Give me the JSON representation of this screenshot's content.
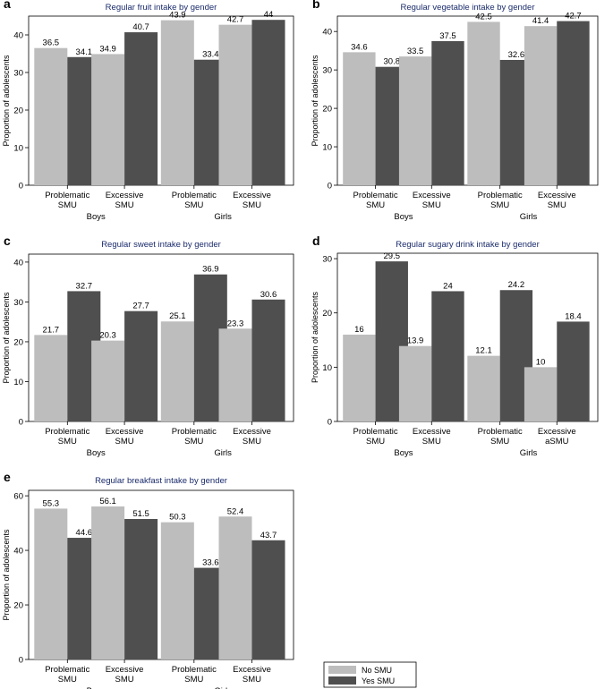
{
  "legend": {
    "items": [
      {
        "label": "No SMU",
        "color": "#bdbdbd"
      },
      {
        "label": "Yes SMU",
        "color": "#4f4f4f"
      }
    ]
  },
  "colors": {
    "no_smu": "#bdbdbd",
    "yes_smu": "#4f4f4f",
    "title": "#1a2b6b",
    "axis": "#000000"
  },
  "chart_data": [
    {
      "panel_letter": "a",
      "type": "bar",
      "title": "Regular fruit intake by gender",
      "ylabel": "Proportion of adolescents",
      "ylim": [
        0,
        45
      ],
      "yticks": [
        0,
        10,
        20,
        30,
        40
      ],
      "groups": [
        "Boys",
        "Girls"
      ],
      "categories": [
        [
          "Problematic",
          "SMU"
        ],
        [
          "Excessive",
          "SMU"
        ],
        [
          "Problematic",
          "SMU"
        ],
        [
          "Excessive",
          "SMU"
        ]
      ],
      "category_group": [
        0,
        0,
        1,
        1
      ],
      "series": [
        {
          "name": "No SMU",
          "values": [
            36.5,
            34.9,
            43.9,
            42.7
          ],
          "labels": [
            "36.5",
            "34.9",
            "43.9",
            "42.7"
          ]
        },
        {
          "name": "Yes SMU",
          "values": [
            34.1,
            40.7,
            33.4,
            44
          ],
          "labels": [
            "34.1",
            "40.7",
            "33.4",
            "44"
          ]
        }
      ]
    },
    {
      "panel_letter": "b",
      "type": "bar",
      "title": "Regular vegetable intake by gender",
      "ylabel": "Proportion of adolescents",
      "ylim": [
        0,
        44
      ],
      "yticks": [
        0,
        10,
        20,
        30,
        40
      ],
      "groups": [
        "Boys",
        "Girls"
      ],
      "categories": [
        [
          "Problematic",
          "SMU"
        ],
        [
          "Excessive",
          "SMU"
        ],
        [
          "Problematic",
          "SMU"
        ],
        [
          "Excessive",
          "SMU"
        ]
      ],
      "category_group": [
        0,
        0,
        1,
        1
      ],
      "series": [
        {
          "name": "No SMU",
          "values": [
            34.6,
            33.5,
            42.5,
            41.4
          ],
          "labels": [
            "34.6",
            "33.5",
            "42.5",
            "41.4"
          ]
        },
        {
          "name": "Yes SMU",
          "values": [
            30.8,
            37.5,
            32.6,
            42.7
          ],
          "labels": [
            "30.8",
            "37.5",
            "32.6",
            "42.7"
          ]
        }
      ]
    },
    {
      "panel_letter": "c",
      "type": "bar",
      "title": "Regular sweet intake by gender",
      "ylabel": "Proportion of adolescents",
      "ylim": [
        0,
        42
      ],
      "yticks": [
        0,
        10,
        20,
        30,
        40
      ],
      "groups": [
        "Boys",
        "Girls"
      ],
      "categories": [
        [
          "Problematic",
          "SMU"
        ],
        [
          "Excessive",
          "SMU"
        ],
        [
          "Problematic",
          "SMU"
        ],
        [
          "Excessive",
          "SMU"
        ]
      ],
      "category_group": [
        0,
        0,
        1,
        1
      ],
      "series": [
        {
          "name": "No SMU",
          "values": [
            21.7,
            20.3,
            25.1,
            23.3
          ],
          "labels": [
            "21.7",
            "20.3",
            "25.1",
            "23.3"
          ]
        },
        {
          "name": "Yes SMU",
          "values": [
            32.7,
            27.7,
            36.9,
            30.6
          ],
          "labels": [
            "32.7",
            "27.7",
            "36.9",
            "30.6"
          ]
        }
      ]
    },
    {
      "panel_letter": "d",
      "type": "bar",
      "title": "Regular sugary drink intake by gender",
      "ylabel": "Proportion of adolescents",
      "ylim": [
        0,
        31
      ],
      "yticks": [
        0,
        10,
        20,
        30
      ],
      "groups": [
        "Boys",
        "Girls"
      ],
      "categories": [
        [
          "Problematic",
          "SMU"
        ],
        [
          "Excessive",
          "SMU"
        ],
        [
          "Problematic",
          "SMU"
        ],
        [
          "Excessive",
          "aSMU"
        ]
      ],
      "category_group": [
        0,
        0,
        1,
        1
      ],
      "series": [
        {
          "name": "No SMU",
          "values": [
            16,
            13.9,
            12.1,
            10
          ],
          "labels": [
            "16",
            "13.9",
            "12.1",
            "10"
          ]
        },
        {
          "name": "Yes SMU",
          "values": [
            29.5,
            24,
            24.2,
            18.4
          ],
          "labels": [
            "29.5",
            "24",
            "24.2",
            "18.4"
          ]
        }
      ]
    },
    {
      "panel_letter": "e",
      "type": "bar",
      "title": "Regular breakfast intake by gender",
      "ylabel": "Proportion of adolescents",
      "ylim": [
        0,
        62
      ],
      "yticks": [
        0,
        20,
        40,
        60
      ],
      "groups": [
        "Boys",
        "Girls"
      ],
      "categories": [
        [
          "Problematic",
          "SMU"
        ],
        [
          "Excessive",
          "SMU"
        ],
        [
          "Problematic",
          "SMU"
        ],
        [
          "Excessive",
          "SMU"
        ]
      ],
      "category_group": [
        0,
        0,
        1,
        1
      ],
      "series": [
        {
          "name": "No SMU",
          "values": [
            55.3,
            56.1,
            50.3,
            52.4
          ],
          "labels": [
            "55.3",
            "56.1",
            "50.3",
            "52.4"
          ]
        },
        {
          "name": "Yes SMU",
          "values": [
            44.6,
            51.5,
            33.6,
            43.7
          ],
          "labels": [
            "44.6",
            "51.5",
            "33.6",
            "43.7"
          ]
        }
      ]
    }
  ]
}
